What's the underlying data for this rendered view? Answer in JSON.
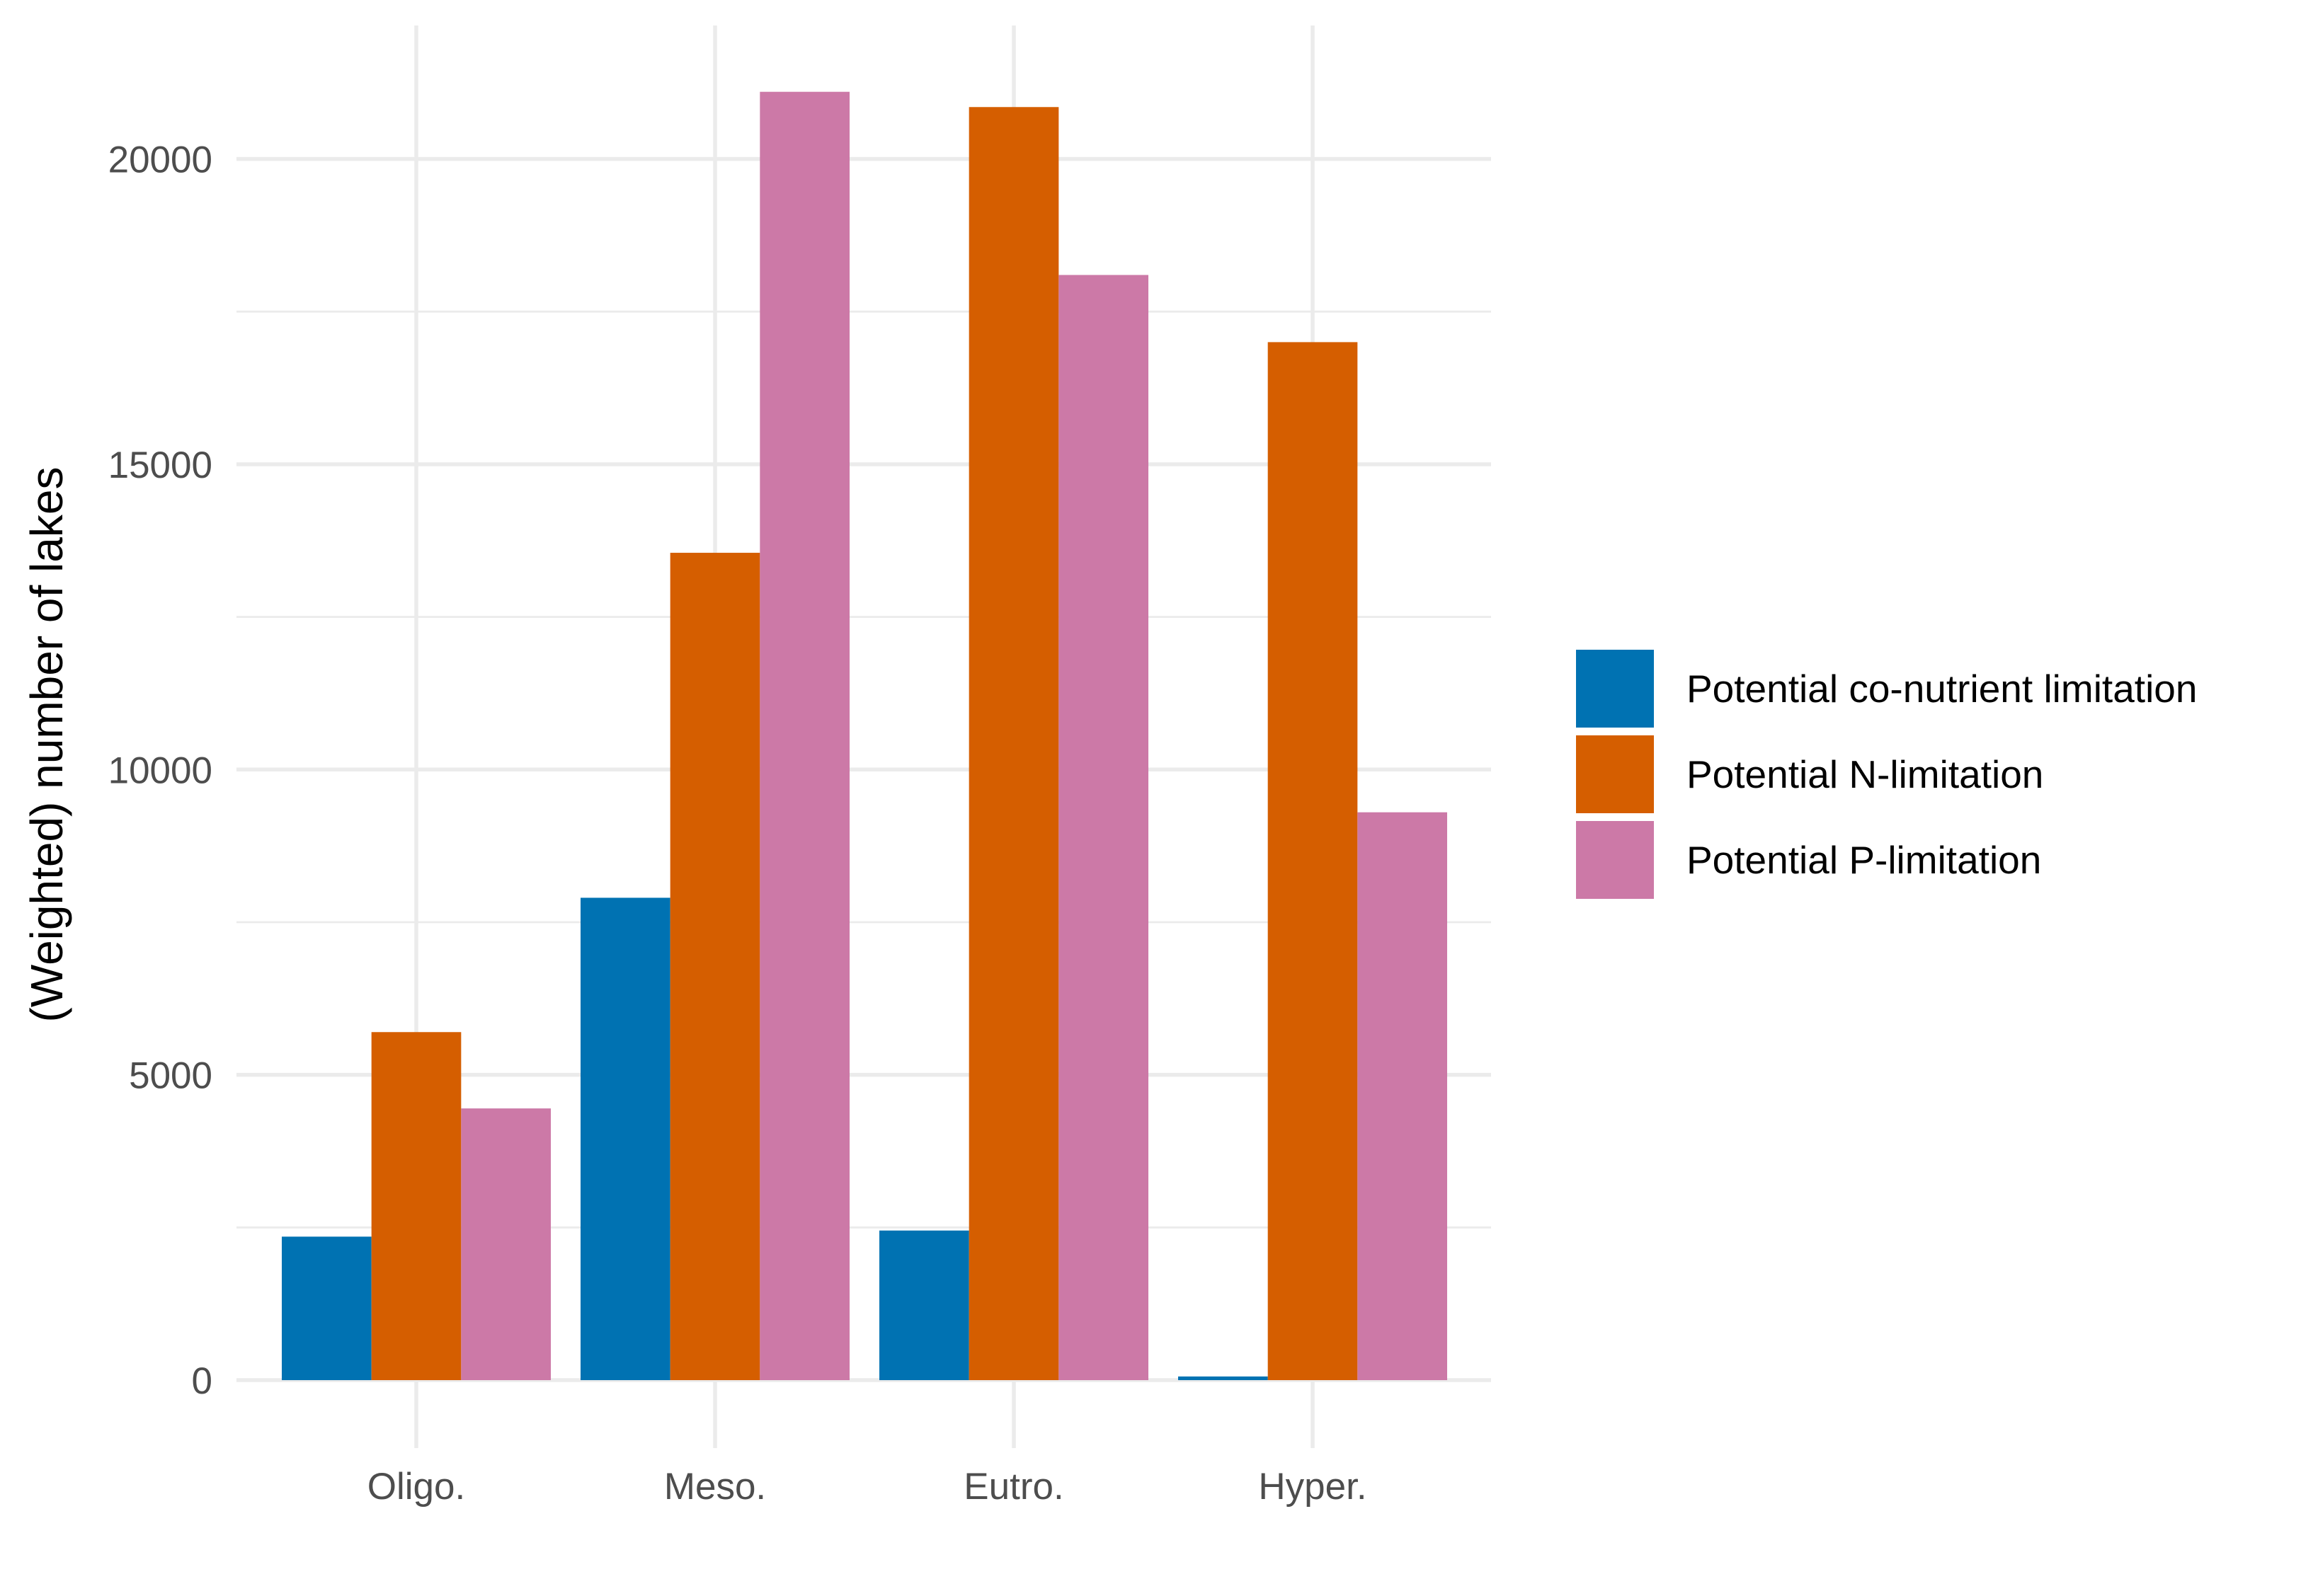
{
  "chart_data": {
    "type": "bar",
    "title": "",
    "xlabel": "",
    "ylabel": "(Weighted) number of lakes",
    "categories": [
      "Oligo.",
      "Meso.",
      "Eutro.",
      "Hyper."
    ],
    "series": [
      {
        "name": "Potential co-nutrient limitation",
        "color": "#0072B2",
        "values": [
          2350,
          7900,
          2450,
          60
        ]
      },
      {
        "name": "Potential N-limitation",
        "color": "#D55E00",
        "values": [
          5700,
          13550,
          20850,
          17000
        ]
      },
      {
        "name": "Potential P-limitation",
        "color": "#CC79A7",
        "values": [
          4450,
          21100,
          18100,
          9300
        ]
      }
    ],
    "ylim": [
      0,
      22000
    ],
    "yticks": [
      0,
      5000,
      10000,
      15000,
      20000
    ],
    "ytick_labels": [
      "0",
      "5000",
      "10000",
      "15000",
      "20000"
    ],
    "grid": true,
    "legend_position": "right",
    "background": "#ffffff"
  }
}
